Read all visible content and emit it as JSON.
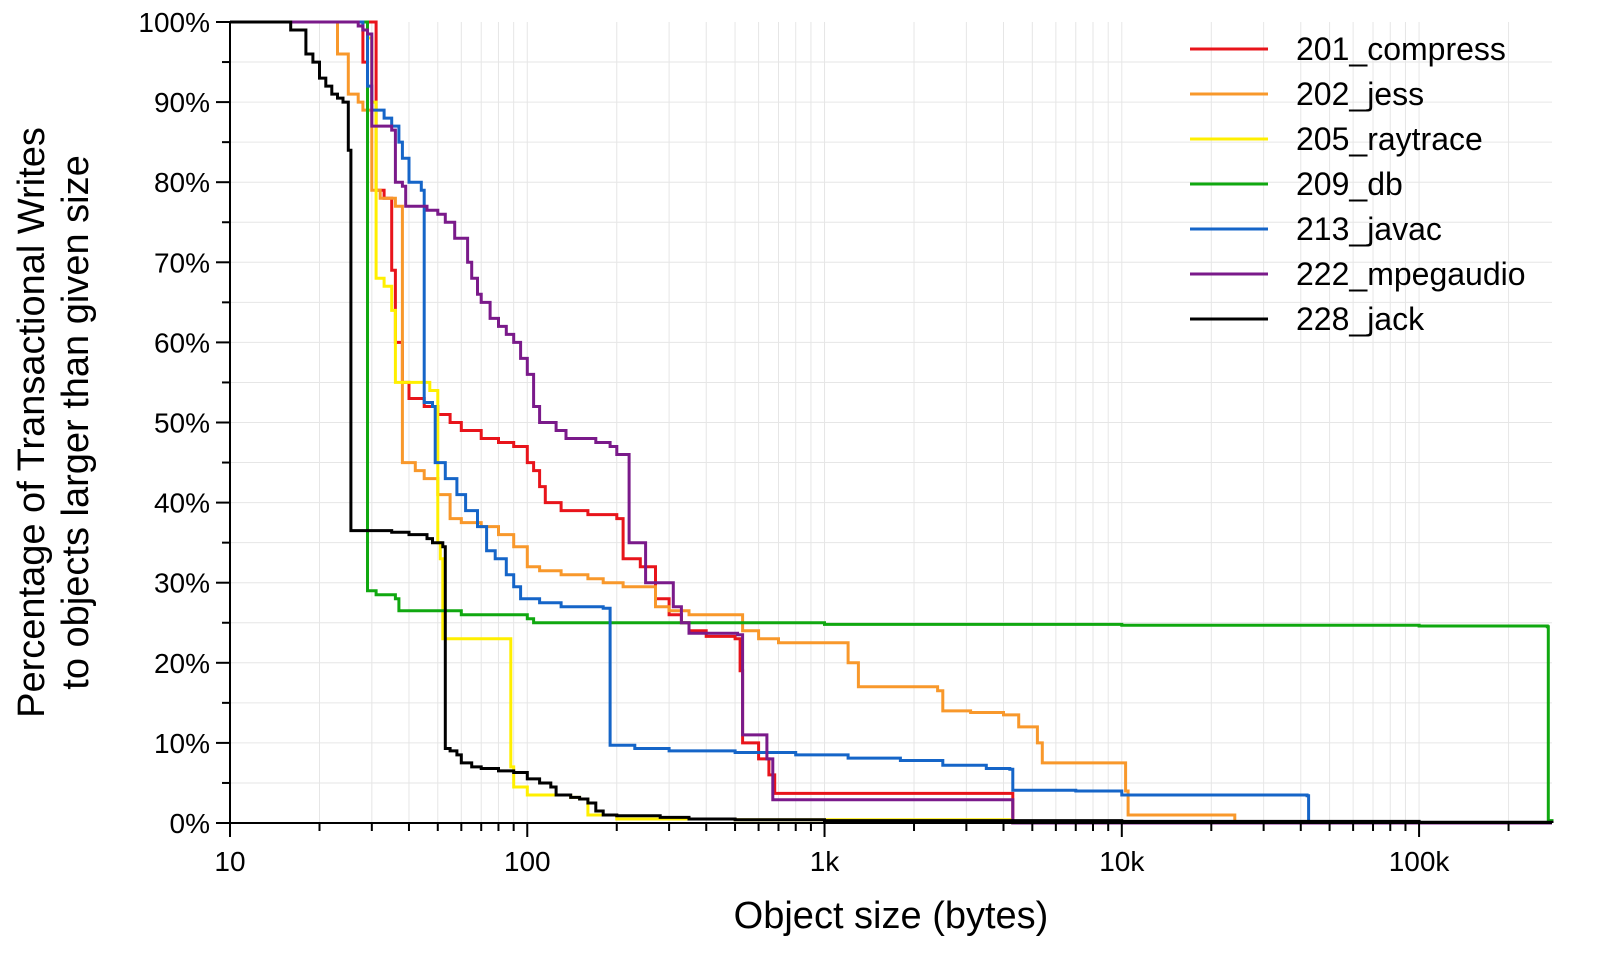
{
  "chart_data": {
    "type": "line",
    "step": true,
    "xlabel": "Object size (bytes)",
    "ylabel": [
      "Percentage of Transactional Writes",
      "to objects larger than given size"
    ],
    "x_scale": "log",
    "xlim": [
      10,
      280000
    ],
    "ylim": [
      0,
      100
    ],
    "grid": true,
    "legend_position": "top-right",
    "x_ticks": [
      {
        "value": 10,
        "label": "10"
      },
      {
        "value": 100,
        "label": "100"
      },
      {
        "value": 1000,
        "label": "1k"
      },
      {
        "value": 10000,
        "label": "10k"
      },
      {
        "value": 100000,
        "label": "100k"
      }
    ],
    "y_ticks": [
      {
        "value": 0,
        "label": "0%"
      },
      {
        "value": 10,
        "label": "10%"
      },
      {
        "value": 20,
        "label": "20%"
      },
      {
        "value": 30,
        "label": "30%"
      },
      {
        "value": 40,
        "label": "40%"
      },
      {
        "value": 50,
        "label": "50%"
      },
      {
        "value": 60,
        "label": "60%"
      },
      {
        "value": 70,
        "label": "70%"
      },
      {
        "value": 80,
        "label": "80%"
      },
      {
        "value": 90,
        "label": "90%"
      },
      {
        "value": 100,
        "label": "100%"
      }
    ],
    "series": [
      {
        "name": "201_compress",
        "color": "#e8141b",
        "points": [
          [
            10,
            100
          ],
          [
            27,
            100
          ],
          [
            28,
            95
          ],
          [
            29,
            100
          ],
          [
            31,
            79
          ],
          [
            33,
            78
          ],
          [
            35,
            69
          ],
          [
            36,
            60
          ],
          [
            38,
            55
          ],
          [
            40,
            53
          ],
          [
            45,
            52
          ],
          [
            50,
            51
          ],
          [
            55,
            50
          ],
          [
            60,
            49
          ],
          [
            70,
            48
          ],
          [
            80,
            47.5
          ],
          [
            90,
            47
          ],
          [
            100,
            45
          ],
          [
            105,
            44
          ],
          [
            110,
            42
          ],
          [
            115,
            40
          ],
          [
            130,
            39
          ],
          [
            160,
            38.5
          ],
          [
            200,
            38
          ],
          [
            210,
            33
          ],
          [
            240,
            32
          ],
          [
            270,
            28
          ],
          [
            300,
            26
          ],
          [
            330,
            25
          ],
          [
            350,
            24
          ],
          [
            400,
            23.3
          ],
          [
            500,
            23
          ],
          [
            520,
            19
          ],
          [
            530,
            10
          ],
          [
            600,
            8
          ],
          [
            650,
            6
          ],
          [
            680,
            3.7
          ],
          [
            4300,
            3.7
          ],
          [
            4300,
            0
          ],
          [
            280000,
            0
          ]
        ]
      },
      {
        "name": "202_jess",
        "color": "#f8982b",
        "points": [
          [
            10,
            100
          ],
          [
            22,
            100
          ],
          [
            23,
            96
          ],
          [
            25,
            91
          ],
          [
            27,
            90
          ],
          [
            28,
            89
          ],
          [
            30,
            79
          ],
          [
            32,
            78
          ],
          [
            36,
            77
          ],
          [
            38,
            45
          ],
          [
            42,
            44
          ],
          [
            45,
            43
          ],
          [
            50,
            41
          ],
          [
            55,
            38
          ],
          [
            60,
            37.5
          ],
          [
            70,
            37
          ],
          [
            80,
            36
          ],
          [
            90,
            34.5
          ],
          [
            100,
            32
          ],
          [
            110,
            31.5
          ],
          [
            130,
            31
          ],
          [
            160,
            30.5
          ],
          [
            180,
            30
          ],
          [
            210,
            29.5
          ],
          [
            260,
            29.5
          ],
          [
            270,
            27
          ],
          [
            300,
            26.5
          ],
          [
            350,
            26
          ],
          [
            510,
            26
          ],
          [
            530,
            24
          ],
          [
            600,
            23
          ],
          [
            700,
            22.5
          ],
          [
            900,
            22.5
          ],
          [
            1100,
            22.5
          ],
          [
            1200,
            20
          ],
          [
            1300,
            17
          ],
          [
            1700,
            17
          ],
          [
            2400,
            16.5
          ],
          [
            2500,
            14
          ],
          [
            3100,
            13.8
          ],
          [
            4000,
            13.5
          ],
          [
            4500,
            12
          ],
          [
            5200,
            10
          ],
          [
            5400,
            7.5
          ],
          [
            10000,
            7.5
          ],
          [
            10300,
            4
          ],
          [
            10500,
            1
          ],
          [
            24000,
            1
          ],
          [
            24000,
            0
          ],
          [
            280000,
            0
          ]
        ]
      },
      {
        "name": "205_raytrace",
        "color": "#ffef00",
        "points": [
          [
            10,
            100
          ],
          [
            27,
            100
          ],
          [
            28,
            99
          ],
          [
            29,
            98
          ],
          [
            30,
            90
          ],
          [
            31,
            68
          ],
          [
            33,
            67
          ],
          [
            35,
            64
          ],
          [
            36,
            55
          ],
          [
            47,
            54
          ],
          [
            50,
            35
          ],
          [
            51,
            33
          ],
          [
            52,
            23
          ],
          [
            86,
            23
          ],
          [
            88,
            7
          ],
          [
            90,
            4.5
          ],
          [
            100,
            3.5
          ],
          [
            140,
            3.2
          ],
          [
            150,
            3
          ],
          [
            160,
            1
          ],
          [
            200,
            0.5
          ],
          [
            500,
            0.4
          ],
          [
            4300,
            0.3
          ],
          [
            4300,
            0
          ],
          [
            280000,
            0
          ]
        ]
      },
      {
        "name": "209_db",
        "color": "#10a810",
        "points": [
          [
            10,
            100
          ],
          [
            28.5,
            100
          ],
          [
            29,
            29
          ],
          [
            31,
            28.5
          ],
          [
            36,
            28
          ],
          [
            37,
            26.5
          ],
          [
            60,
            26
          ],
          [
            100,
            25.5
          ],
          [
            105,
            25
          ],
          [
            1000,
            24.8
          ],
          [
            10000,
            24.7
          ],
          [
            100000,
            24.6
          ],
          [
            270000,
            24.5
          ],
          [
            272000,
            0.3
          ],
          [
            280000,
            0
          ]
        ]
      },
      {
        "name": "213_javac",
        "color": "#1565c8",
        "points": [
          [
            10,
            100
          ],
          [
            27,
            100
          ],
          [
            28,
            99
          ],
          [
            29,
            92
          ],
          [
            30,
            89
          ],
          [
            33,
            88
          ],
          [
            35,
            87
          ],
          [
            37,
            85
          ],
          [
            38,
            83
          ],
          [
            40,
            80
          ],
          [
            44,
            79
          ],
          [
            45,
            52.5
          ],
          [
            48,
            52
          ],
          [
            49,
            45
          ],
          [
            53,
            43
          ],
          [
            58,
            41
          ],
          [
            62,
            39
          ],
          [
            68,
            37
          ],
          [
            73,
            34
          ],
          [
            78,
            33
          ],
          [
            85,
            31
          ],
          [
            90,
            29.5
          ],
          [
            95,
            28
          ],
          [
            110,
            27.5
          ],
          [
            130,
            27
          ],
          [
            180,
            26.8
          ],
          [
            190,
            9.7
          ],
          [
            230,
            9.3
          ],
          [
            300,
            9
          ],
          [
            500,
            8.8
          ],
          [
            800,
            8.5
          ],
          [
            1200,
            8.1
          ],
          [
            1800,
            7.8
          ],
          [
            2500,
            7.2
          ],
          [
            3500,
            6.8
          ],
          [
            4200,
            6.7
          ],
          [
            4300,
            4.1
          ],
          [
            7000,
            4.0
          ],
          [
            10000,
            3.5
          ],
          [
            42000,
            3.4
          ],
          [
            42500,
            0
          ],
          [
            280000,
            0
          ]
        ]
      },
      {
        "name": "222_mpegaudio",
        "color": "#7a1a8a",
        "points": [
          [
            10,
            100
          ],
          [
            26,
            100
          ],
          [
            27,
            99.5
          ],
          [
            28,
            99
          ],
          [
            29,
            98.5
          ],
          [
            30,
            87
          ],
          [
            35,
            86.5
          ],
          [
            36,
            80
          ],
          [
            38,
            79.5
          ],
          [
            39,
            77
          ],
          [
            46,
            76.5
          ],
          [
            50,
            76
          ],
          [
            53,
            75
          ],
          [
            57,
            73
          ],
          [
            63,
            70
          ],
          [
            65,
            68
          ],
          [
            68,
            66
          ],
          [
            70,
            65
          ],
          [
            75,
            63
          ],
          [
            80,
            62
          ],
          [
            85,
            61
          ],
          [
            90,
            60
          ],
          [
            95,
            58
          ],
          [
            100,
            56
          ],
          [
            105,
            52
          ],
          [
            110,
            50
          ],
          [
            125,
            49
          ],
          [
            135,
            48
          ],
          [
            170,
            47.5
          ],
          [
            190,
            47
          ],
          [
            200,
            46
          ],
          [
            220,
            35
          ],
          [
            250,
            30
          ],
          [
            290,
            30
          ],
          [
            310,
            27
          ],
          [
            330,
            25
          ],
          [
            350,
            23.7
          ],
          [
            510,
            23.5
          ],
          [
            530,
            11
          ],
          [
            620,
            11
          ],
          [
            640,
            8
          ],
          [
            670,
            2.9
          ],
          [
            4200,
            2.9
          ],
          [
            4300,
            0
          ],
          [
            280000,
            0
          ]
        ]
      },
      {
        "name": "228_jack",
        "color": "#000000",
        "points": [
          [
            10,
            100
          ],
          [
            15,
            100
          ],
          [
            16,
            99
          ],
          [
            18,
            96
          ],
          [
            19,
            95
          ],
          [
            20,
            93
          ],
          [
            21,
            92
          ],
          [
            22,
            91
          ],
          [
            23,
            90.5
          ],
          [
            24,
            90
          ],
          [
            25,
            84
          ],
          [
            25.5,
            36.5
          ],
          [
            30,
            36.5
          ],
          [
            35,
            36.3
          ],
          [
            40,
            36
          ],
          [
            46,
            35.5
          ],
          [
            48,
            35
          ],
          [
            52,
            34.5
          ],
          [
            53,
            9.3
          ],
          [
            55,
            9
          ],
          [
            58,
            8.5
          ],
          [
            60,
            7.5
          ],
          [
            65,
            7
          ],
          [
            70,
            6.8
          ],
          [
            80,
            6.5
          ],
          [
            90,
            6.3
          ],
          [
            100,
            5.5
          ],
          [
            110,
            5
          ],
          [
            120,
            4.5
          ],
          [
            125,
            3.5
          ],
          [
            140,
            3.2
          ],
          [
            150,
            3
          ],
          [
            160,
            2.5
          ],
          [
            170,
            1.5
          ],
          [
            180,
            1
          ],
          [
            200,
            0.9
          ],
          [
            280,
            0.7
          ],
          [
            350,
            0.5
          ],
          [
            500,
            0.4
          ],
          [
            1000,
            0.3
          ],
          [
            10000,
            0.2
          ],
          [
            100000,
            0.1
          ],
          [
            272000,
            0.1
          ],
          [
            280000,
            0
          ]
        ]
      }
    ]
  }
}
